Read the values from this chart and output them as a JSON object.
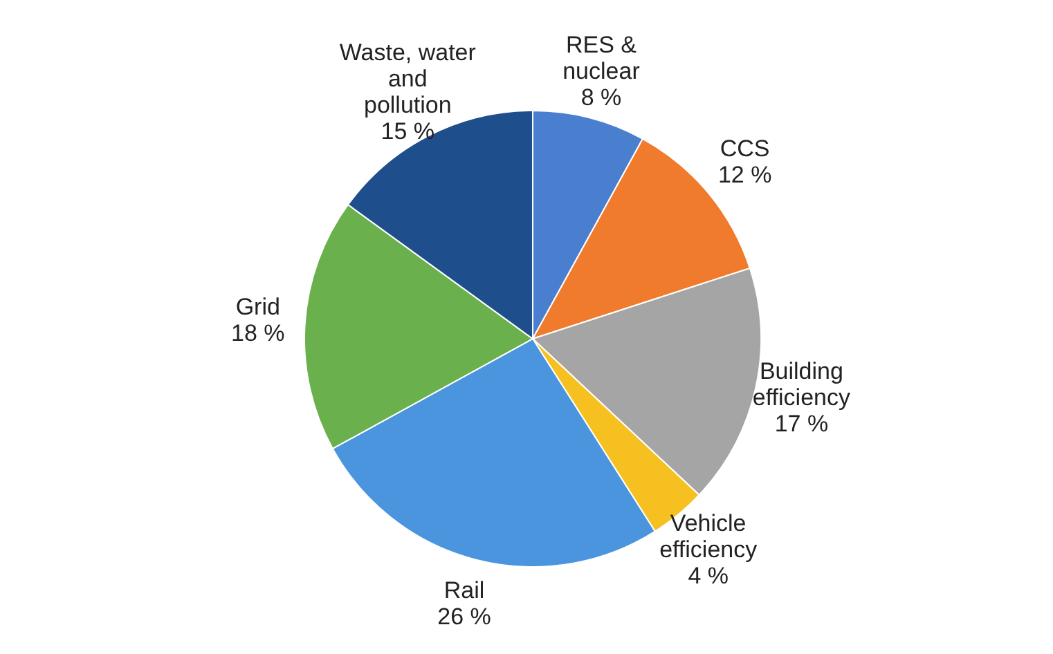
{
  "chart_data": {
    "type": "pie",
    "categories": [
      "RES & nuclear",
      "CCS",
      "Building efficiency",
      "Vehicle efficiency",
      "Rail",
      "Grid",
      "Waste, water and pollution"
    ],
    "values": [
      8,
      12,
      17,
      4,
      26,
      18,
      15
    ],
    "colors": [
      "#4a7fd0",
      "#f07b2c",
      "#a5a5a5",
      "#f5c020",
      "#4a95dd",
      "#6ab04c",
      "#1f4e8c"
    ],
    "value_labels": [
      "8 %",
      "12 %",
      "17 %",
      "4 %",
      "26 %",
      "18 %",
      "15 %"
    ]
  }
}
